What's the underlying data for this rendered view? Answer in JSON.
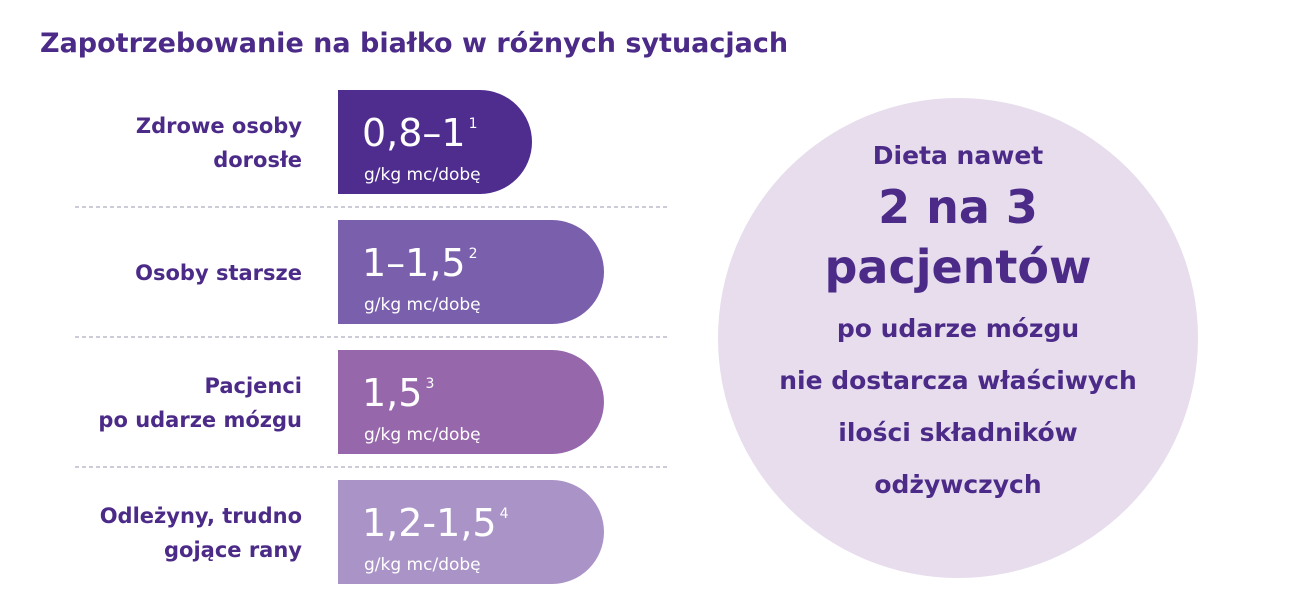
{
  "header": {
    "title": "Zapotrzebowanie na białko w różnych sytuacjach"
  },
  "rows": [
    {
      "label": [
        "Zdrowe osoby",
        "dorosłe"
      ],
      "value": "0,8–1",
      "note": "1",
      "unit": "g/kg mc/dobę"
    },
    {
      "label": [
        "Osoby starsze"
      ],
      "value": "1–1,5",
      "note": "2",
      "unit": "g/kg mc/dobę"
    },
    {
      "label": [
        "Pacjenci",
        "po udarze mózgu"
      ],
      "value": "1,5",
      "note": "3",
      "unit": "g/kg mc/dobę"
    },
    {
      "label": [
        "Odleżyny, trudno",
        "gojące rany"
      ],
      "value": "1,2-1,5",
      "note": "4",
      "unit": "g/kg mc/dobę"
    }
  ],
  "circle": {
    "intro": "Dieta nawet",
    "highlight": [
      "2 na 3",
      "pacjentów"
    ],
    "body": [
      "po udarze mózgu",
      "nie dostarcza właściwych",
      "ilości składników",
      "odżywczych"
    ]
  }
}
